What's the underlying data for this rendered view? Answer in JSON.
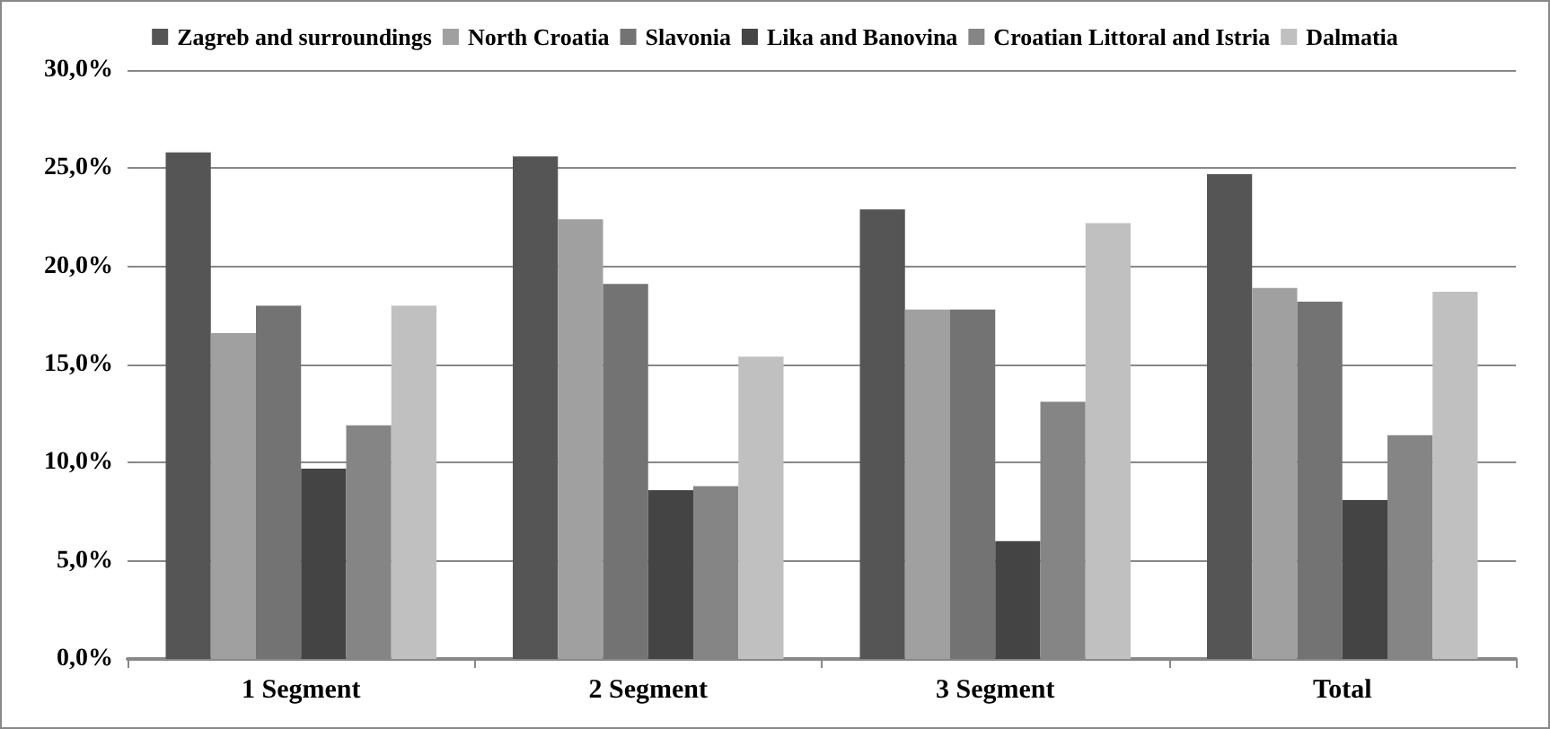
{
  "chart_data": {
    "type": "bar",
    "categories": [
      "1 Segment",
      "2 Segment",
      "3 Segment",
      "Total"
    ],
    "series": [
      {
        "name": "Zagreb and surroundings",
        "color": "#555555",
        "values": [
          25.8,
          25.6,
          22.9,
          24.7
        ]
      },
      {
        "name": "North Croatia",
        "color": "#a0a0a0",
        "values": [
          16.6,
          22.4,
          17.8,
          18.9
        ]
      },
      {
        "name": "Slavonia",
        "color": "#737373",
        "values": [
          18.0,
          19.1,
          17.8,
          18.2
        ]
      },
      {
        "name": "Lika and Banovina",
        "color": "#444444",
        "values": [
          9.7,
          8.6,
          6.0,
          8.1
        ]
      },
      {
        "name": "Croatian Littoral and Istria",
        "color": "#858585",
        "values": [
          11.9,
          8.8,
          13.1,
          11.4
        ]
      },
      {
        "name": "Dalmatia",
        "color": "#c0c0c0",
        "values": [
          18.0,
          15.4,
          22.2,
          18.7
        ]
      }
    ],
    "ylim": [
      0,
      30
    ],
    "yticks": [
      {
        "value": 0,
        "label": "0,0%"
      },
      {
        "value": 5,
        "label": "5,0%"
      },
      {
        "value": 10,
        "label": "10,0%"
      },
      {
        "value": 15,
        "label": "15,0%"
      },
      {
        "value": 20,
        "label": "20,0%"
      },
      {
        "value": 25,
        "label": "25,0%"
      },
      {
        "value": 30,
        "label": "30,0%"
      }
    ],
    "grid": "y",
    "legend": "top"
  }
}
